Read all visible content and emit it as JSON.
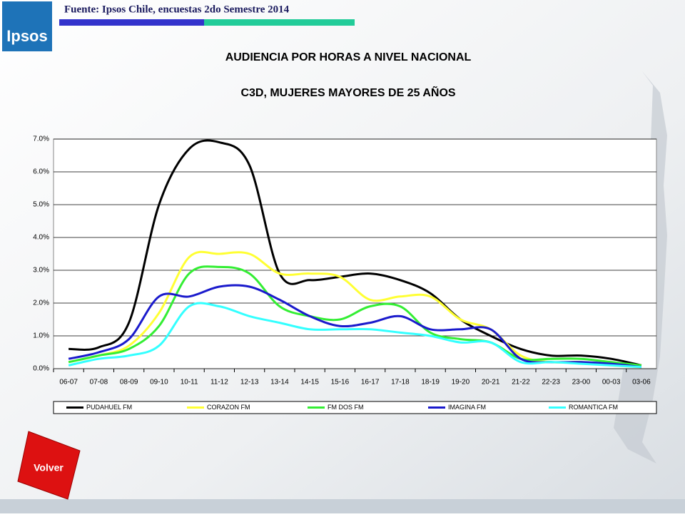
{
  "header": {
    "logo": "Ipsos",
    "source": "Fuente: Ipsos Chile, encuestas 2do Semestre 2014"
  },
  "button": "Volver",
  "chart_data": {
    "type": "line",
    "title": "AUDIENCIA POR HORAS A NIVEL NACIONAL",
    "subtitle": "C3D, MUJERES MAYORES DE 25 AÑOS",
    "categories": [
      "06-07",
      "07-08",
      "08-09",
      "09-10",
      "10-11",
      "11-12",
      "12-13",
      "13-14",
      "14-15",
      "15-16",
      "16-17",
      "17-18",
      "18-19",
      "19-20",
      "20-21",
      "21-22",
      "22-23",
      "23-00",
      "00-03",
      "03-06"
    ],
    "series": [
      {
        "name": "PUDAHUEL FM",
        "color": "#000000",
        "values": [
          0.6,
          0.65,
          1.4,
          5.0,
          6.7,
          6.9,
          6.2,
          2.9,
          2.7,
          2.8,
          2.9,
          2.7,
          2.3,
          1.5,
          1.0,
          0.6,
          0.4,
          0.4,
          0.3,
          0.1
        ]
      },
      {
        "name": "CORAZON FM",
        "color": "#ffff33",
        "values": [
          0.2,
          0.4,
          0.7,
          1.7,
          3.4,
          3.5,
          3.5,
          2.9,
          2.9,
          2.8,
          2.1,
          2.2,
          2.2,
          1.5,
          1.2,
          0.4,
          0.2,
          0.2,
          0.1,
          0.05
        ]
      },
      {
        "name": "FM DOS FM",
        "color": "#33ee33",
        "values": [
          0.2,
          0.4,
          0.6,
          1.3,
          2.9,
          3.1,
          2.9,
          1.9,
          1.6,
          1.5,
          1.9,
          1.9,
          1.1,
          0.9,
          0.8,
          0.3,
          0.3,
          0.3,
          0.2,
          0.1
        ]
      },
      {
        "name": "IMAGINA FM",
        "color": "#1a1acc",
        "values": [
          0.3,
          0.5,
          0.9,
          2.2,
          2.2,
          2.5,
          2.5,
          2.1,
          1.6,
          1.3,
          1.4,
          1.6,
          1.2,
          1.2,
          1.2,
          0.3,
          0.2,
          0.2,
          0.15,
          0.05
        ]
      },
      {
        "name": "ROMANTICA FM",
        "color": "#33ffff",
        "values": [
          0.1,
          0.3,
          0.4,
          0.7,
          1.9,
          1.9,
          1.6,
          1.4,
          1.2,
          1.2,
          1.2,
          1.1,
          1.0,
          0.8,
          0.8,
          0.2,
          0.2,
          0.15,
          0.1,
          0.05
        ]
      }
    ],
    "ylim": [
      0,
      7
    ],
    "yticks": [
      {
        "value": 0,
        "label": "0.0%"
      },
      {
        "value": 1,
        "label": "1.0%"
      },
      {
        "value": 2,
        "label": "2.0%"
      },
      {
        "value": 3,
        "label": "3.0%"
      },
      {
        "value": 4,
        "label": "4.0%"
      },
      {
        "value": 5,
        "label": "5.0%"
      },
      {
        "value": 6,
        "label": "6.0%"
      },
      {
        "value": 7,
        "label": "7.0%"
      }
    ],
    "grid": true,
    "legend": "bottom"
  }
}
